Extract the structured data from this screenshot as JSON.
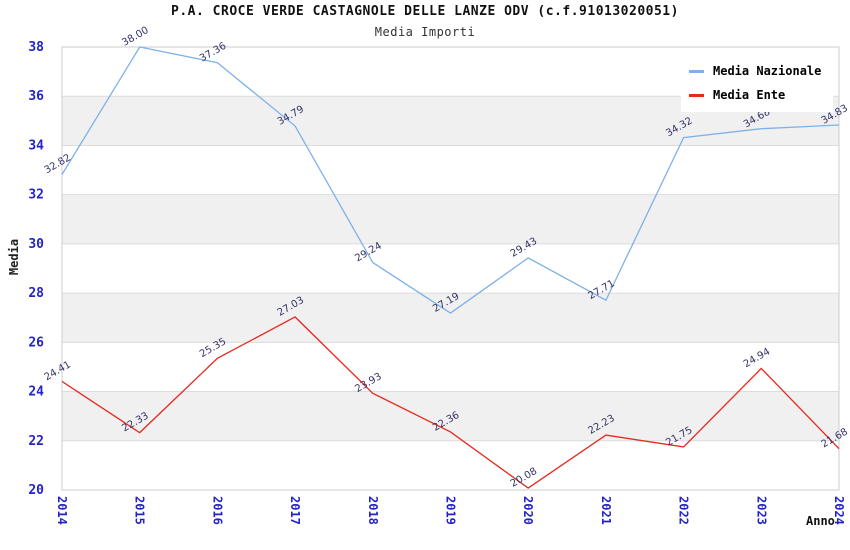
{
  "header": {
    "title": "P.A. CROCE VERDE CASTAGNOLE DELLE LANZE ODV (c.f.91013020051)",
    "subtitle": "Media Importi"
  },
  "chart_data": {
    "type": "line",
    "title": "P.A. CROCE VERDE CASTAGNOLE DELLE LANZE ODV (c.f.91013020051)",
    "subtitle": "Media Importi",
    "xlabel": "Anno",
    "ylabel": "Media",
    "categories": [
      "2014",
      "2015",
      "2016",
      "2017",
      "2018",
      "2019",
      "2020",
      "2021",
      "2022",
      "2023",
      "2024"
    ],
    "series": [
      {
        "name": "Media Nazionale",
        "color": "#7fb1e8",
        "values": [
          32.82,
          38.0,
          37.36,
          34.79,
          29.24,
          27.19,
          29.43,
          27.71,
          34.32,
          34.68,
          34.83
        ]
      },
      {
        "name": "Media Ente",
        "color": "#e8281e",
        "values": [
          24.41,
          22.33,
          25.35,
          27.03,
          23.93,
          22.36,
          20.08,
          22.23,
          21.75,
          24.94,
          21.68
        ]
      }
    ],
    "ylim": [
      20,
      38
    ],
    "ytick_step": 2,
    "yticks": [
      20,
      22,
      24,
      26,
      28,
      30,
      32,
      34,
      36,
      38
    ],
    "grid": true,
    "band_colors": [
      "#ffffff",
      "#f0f0f0"
    ],
    "legend_position": "top-right",
    "value_label_decimals": 2
  },
  "legend": {
    "items": [
      {
        "label": "Media Nazionale",
        "color": "#7fb1e8"
      },
      {
        "label": "Media Ente",
        "color": "#e8281e"
      }
    ]
  },
  "colors": {
    "axis_tick_label": "#2323cc",
    "data_label": "#333366",
    "plot_border": "#cccccc",
    "gridline": "#dcdcdc",
    "band_gray": "#f0f0f0",
    "background": "#ffffff"
  }
}
